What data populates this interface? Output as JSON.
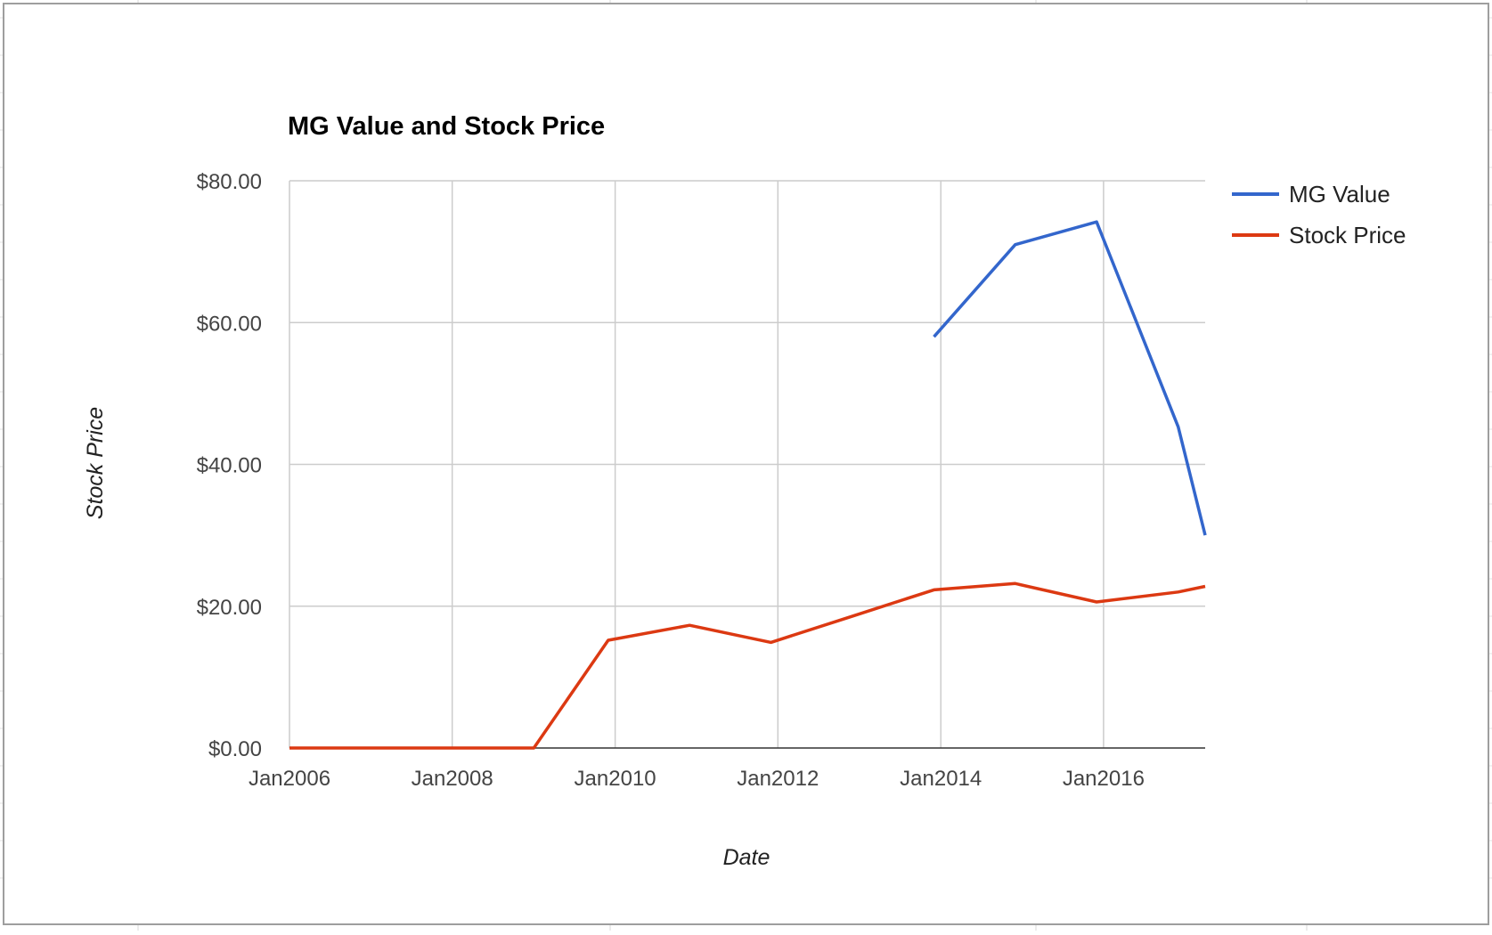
{
  "chart_data": {
    "type": "line",
    "title": "MG Value and Stock Price",
    "xlabel": "Date",
    "ylabel": "Stock Price",
    "xlim": [
      "2006-01-01",
      "2017-04-01"
    ],
    "ylim": [
      0,
      80
    ],
    "x_ticks": [
      "Jan2006",
      "Jan2008",
      "Jan2010",
      "Jan2012",
      "Jan2014",
      "Jan2016"
    ],
    "x_tick_dates": [
      "2006-01-01",
      "2008-01-01",
      "2010-01-01",
      "2012-01-01",
      "2014-01-01",
      "2016-01-01"
    ],
    "y_ticks": [
      "$0.00",
      "$20.00",
      "$40.00",
      "$60.00",
      "$80.00"
    ],
    "y_tick_values": [
      0,
      20,
      40,
      60,
      80
    ],
    "grid": true,
    "legend_position": "right",
    "series": [
      {
        "name": "MG Value",
        "color": "#3366cc",
        "points": [
          {
            "x": "2013-12-01",
            "y": 58.0
          },
          {
            "x": "2014-12-01",
            "y": 71.0
          },
          {
            "x": "2015-12-01",
            "y": 74.2
          },
          {
            "x": "2016-12-01",
            "y": 45.3
          },
          {
            "x": "2017-04-01",
            "y": 30.0
          }
        ]
      },
      {
        "name": "Stock Price",
        "color": "#dc3912",
        "points": [
          {
            "x": "2006-01-01",
            "y": 0
          },
          {
            "x": "2007-01-01",
            "y": 0
          },
          {
            "x": "2008-01-01",
            "y": 0
          },
          {
            "x": "2009-01-01",
            "y": 0
          },
          {
            "x": "2009-12-01",
            "y": 15.2
          },
          {
            "x": "2010-12-01",
            "y": 17.3
          },
          {
            "x": "2011-12-01",
            "y": 14.9
          },
          {
            "x": "2012-12-01",
            "y": 18.6
          },
          {
            "x": "2013-12-01",
            "y": 22.3
          },
          {
            "x": "2014-12-01",
            "y": 23.2
          },
          {
            "x": "2015-12-01",
            "y": 20.6
          },
          {
            "x": "2016-12-01",
            "y": 22.0
          },
          {
            "x": "2017-04-01",
            "y": 22.8
          }
        ]
      }
    ]
  }
}
